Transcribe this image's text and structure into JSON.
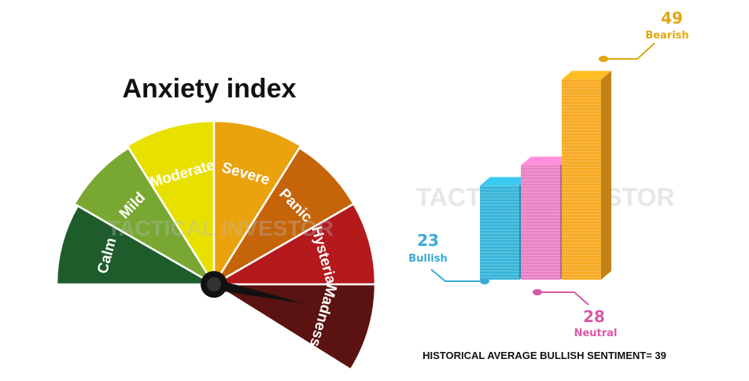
{
  "chart_data": [
    {
      "type": "gauge",
      "title": "Anxiety index",
      "segments": [
        {
          "label": "Calm",
          "color": "#1f5c2c"
        },
        {
          "label": "Mild",
          "color": "#79a832"
        },
        {
          "label": "Moderate",
          "color": "#e8e100"
        },
        {
          "label": "Severe",
          "color": "#eaa20d"
        },
        {
          "label": "Panic",
          "color": "#c66409"
        },
        {
          "label": "Hysteria",
          "color": "#b4191b"
        },
        {
          "label": "Madness",
          "color": "#5a1311"
        }
      ],
      "pointer": "Madness",
      "watermark": "TACTICAL INVESTOR"
    },
    {
      "type": "bar",
      "categories": [
        "Bullish",
        "Neutral",
        "Bearish"
      ],
      "values": [
        23,
        28,
        49
      ],
      "colors": [
        "#34b4d8",
        "#e880c4",
        "#f7a81f"
      ],
      "label_colors": [
        "#3aa9d6",
        "#d65aa6",
        "#e0a712"
      ],
      "ylim": [
        0,
        50
      ],
      "footnote": "HISTORICAL AVERAGE BULLISH SENTIMENT= 39",
      "watermark": "TACTICAL INVESTOR"
    }
  ]
}
